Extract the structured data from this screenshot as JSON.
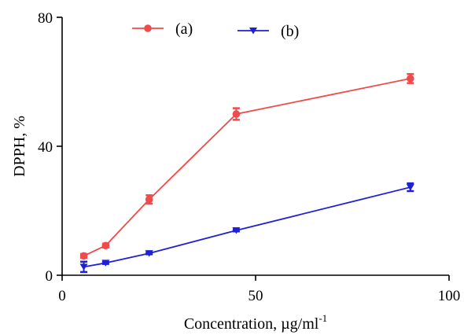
{
  "chart_data": {
    "type": "line",
    "xlabel": "Concentration, µg/ml",
    "xlabel_sup": "-1",
    "ylabel": "DPPH, %",
    "xlim": [
      0,
      100
    ],
    "ylim": [
      0,
      80
    ],
    "xticks": [
      0,
      50,
      100
    ],
    "yticks": [
      0,
      40,
      80
    ],
    "grid": false,
    "legend_position": "top",
    "series": [
      {
        "name": "(a)",
        "color": "#f04a4a",
        "marker": "circle",
        "x": [
          5.6,
          11.25,
          22.5,
          45,
          90
        ],
        "y": [
          6.0,
          9.2,
          23.5,
          50.0,
          61.0
        ],
        "err": [
          0.6,
          0.6,
          1.3,
          1.8,
          1.4
        ]
      },
      {
        "name": "(b)",
        "color": "#1f1fd6",
        "marker": "triangle-down",
        "x": [
          5.6,
          11.25,
          22.5,
          45,
          90
        ],
        "y": [
          2.6,
          3.8,
          6.8,
          13.9,
          27.3
        ],
        "err": [
          1.6,
          0.3,
          0.3,
          0.3,
          1.2
        ]
      }
    ]
  }
}
